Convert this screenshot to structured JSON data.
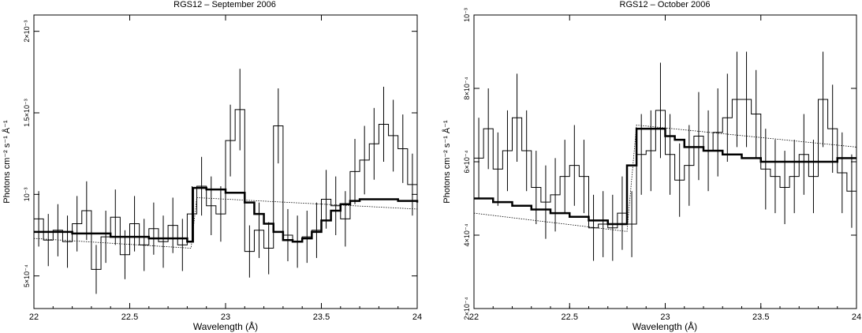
{
  "chart_data": [
    {
      "type": "line",
      "title": "RGS12 – September 2006",
      "xlabel": "Wavelength (Å)",
      "ylabel": "Photons cm⁻² s⁻¹ Å⁻¹",
      "xlim": [
        22,
        24
      ],
      "ylim": [
        0.0003,
        0.0021
      ],
      "xticks": [
        22,
        22.5,
        23,
        23.5,
        24
      ],
      "xtick_labels": [
        "22",
        "22.5",
        "23",
        "23.5",
        "24"
      ],
      "yticks": [
        0.0005,
        0.001,
        0.0015,
        0.002
      ],
      "ytick_labels": [
        "5×10⁻⁴",
        "10⁻³",
        "1.5×10⁻³",
        "2×10⁻³"
      ],
      "series": [
        {
          "style": "data-histogram",
          "x": [
            22.0,
            22.05,
            22.1,
            22.15,
            22.2,
            22.25,
            22.3,
            22.35,
            22.4,
            22.45,
            22.5,
            22.55,
            22.6,
            22.65,
            22.7,
            22.75,
            22.8,
            22.85,
            22.9,
            22.95,
            23.0,
            23.05,
            23.1,
            23.15,
            23.2,
            23.25,
            23.3,
            23.35,
            23.4,
            23.45,
            23.5,
            23.55,
            23.6,
            23.65,
            23.7,
            23.75,
            23.8,
            23.85,
            23.9,
            23.95
          ],
          "y": [
            0.00085,
            0.00072,
            0.00078,
            0.00071,
            0.00082,
            0.0009,
            0.00054,
            0.00074,
            0.00086,
            0.00063,
            0.00082,
            0.00069,
            0.00079,
            0.00071,
            0.00081,
            0.00069,
            0.00088,
            0.00105,
            0.00093,
            0.00088,
            0.00133,
            0.00152,
            0.00065,
            0.00078,
            0.00067,
            0.00142,
            0.00075,
            0.00071,
            0.00074,
            0.00078,
            0.00097,
            0.00093,
            0.00085,
            0.00114,
            0.00121,
            0.00131,
            0.00143,
            0.00136,
            0.00128,
            0.00106
          ],
          "err": [
            0.00017,
            0.00016,
            0.00016,
            0.00016,
            0.00017,
            0.00018,
            0.00015,
            0.00016,
            0.00017,
            0.00015,
            0.00017,
            0.00016,
            0.00016,
            0.00016,
            0.00017,
            0.00016,
            0.00017,
            0.00018,
            0.00018,
            0.00017,
            0.00022,
            0.00025,
            0.00016,
            0.00017,
            0.00016,
            0.00023,
            0.00016,
            0.00016,
            0.00016,
            0.00017,
            0.00018,
            0.00018,
            0.00017,
            0.0002,
            0.00021,
            0.00022,
            0.00023,
            0.00022,
            0.00021,
            0.00019
          ]
        },
        {
          "style": "model-thick",
          "x": [
            22.0,
            22.2,
            22.4,
            22.6,
            22.8,
            22.83,
            22.9,
            23.0,
            23.1,
            23.15,
            23.2,
            23.25,
            23.3,
            23.35,
            23.4,
            23.45,
            23.5,
            23.55,
            23.6,
            23.65,
            23.7,
            23.8,
            23.9,
            24.0
          ],
          "y": [
            0.00077,
            0.00076,
            0.00074,
            0.00073,
            0.00071,
            0.00104,
            0.00103,
            0.00101,
            0.00095,
            0.00088,
            0.00082,
            0.00077,
            0.00072,
            0.00071,
            0.00073,
            0.00077,
            0.00084,
            0.0009,
            0.00094,
            0.00096,
            0.00097,
            0.00097,
            0.00096,
            0.00095
          ]
        },
        {
          "style": "model-dotted",
          "x": [
            22.0,
            22.82,
            22.85,
            24.0
          ],
          "y": [
            0.00073,
            0.00067,
            0.00098,
            0.00091
          ]
        }
      ]
    },
    {
      "type": "line",
      "title": "RGS12 – October 2006",
      "xlabel": "Wavelength (Å)",
      "ylabel": "Photons cm⁻² s⁻¹ Å⁻¹",
      "xlim": [
        22,
        24
      ],
      "ylim": [
        0.0002,
        0.001
      ],
      "xticks": [
        22,
        22.5,
        23,
        23.5,
        24
      ],
      "xtick_labels": [
        "22",
        "22.5",
        "23",
        "23.5",
        "24"
      ],
      "yticks": [
        0.0002,
        0.0004,
        0.0006,
        0.0008,
        0.001
      ],
      "ytick_labels": [
        "2×10⁻⁴",
        "4×10⁻⁴",
        "6×10⁻⁴",
        "8×10⁻⁴",
        "10⁻³"
      ],
      "series": [
        {
          "style": "data-histogram",
          "x": [
            22.0,
            22.05,
            22.1,
            22.15,
            22.2,
            22.25,
            22.3,
            22.35,
            22.4,
            22.45,
            22.5,
            22.55,
            22.6,
            22.65,
            22.7,
            22.75,
            22.8,
            22.85,
            22.9,
            22.95,
            23.0,
            23.05,
            23.1,
            23.15,
            23.2,
            23.25,
            23.3,
            23.35,
            23.4,
            23.45,
            23.5,
            23.55,
            23.6,
            23.65,
            23.7,
            23.75,
            23.8,
            23.85,
            23.9,
            23.95
          ],
          "y": [
            0.00061,
            0.00069,
            0.00058,
            0.00063,
            0.00072,
            0.00063,
            0.00053,
            0.00049,
            0.00051,
            0.00056,
            0.00059,
            0.00056,
            0.00042,
            0.00043,
            0.00042,
            0.00046,
            0.00043,
            0.00062,
            0.00063,
            0.00074,
            0.00062,
            0.00055,
            0.00059,
            0.00067,
            0.00063,
            0.00068,
            0.00072,
            0.00077,
            0.00077,
            0.00073,
            0.00058,
            0.00056,
            0.00053,
            0.00056,
            0.00062,
            0.00056,
            0.00077,
            0.00069,
            0.00057,
            0.00052
          ],
          "err": [
            0.00011,
            0.00011,
            0.0001,
            0.00011,
            0.00012,
            0.00011,
            0.0001,
            0.0001,
            0.0001,
            0.0001,
            0.00011,
            0.0001,
            9e-05,
            9e-05,
            9e-05,
            0.0001,
            9e-05,
            0.00011,
            0.00011,
            0.00013,
            0.00011,
            0.0001,
            0.00011,
            0.00012,
            0.00011,
            0.00012,
            0.00012,
            0.00013,
            0.00013,
            0.00012,
            0.00011,
            0.0001,
            0.0001,
            0.0001,
            0.00011,
            0.0001,
            0.00013,
            0.00012,
            0.00011,
            0.0001
          ]
        },
        {
          "style": "model-thick",
          "x": [
            22.0,
            22.1,
            22.2,
            22.3,
            22.4,
            22.5,
            22.6,
            22.7,
            22.8,
            22.85,
            22.9,
            23.0,
            23.05,
            23.1,
            23.2,
            23.3,
            23.4,
            23.5,
            23.6,
            23.7,
            23.8,
            23.9,
            24.0
          ],
          "y": [
            0.0005,
            0.00049,
            0.00048,
            0.00047,
            0.00046,
            0.00045,
            0.00044,
            0.00043,
            0.00059,
            0.00069,
            0.00069,
            0.00067,
            0.00066,
            0.00064,
            0.00063,
            0.00062,
            0.00061,
            0.0006,
            0.0006,
            0.0006,
            0.0006,
            0.00061,
            0.00061
          ]
        },
        {
          "style": "model-dotted",
          "x": [
            22.0,
            22.8,
            22.85,
            24.0
          ],
          "y": [
            0.00046,
            0.00041,
            0.0007,
            0.00064
          ]
        }
      ]
    }
  ]
}
